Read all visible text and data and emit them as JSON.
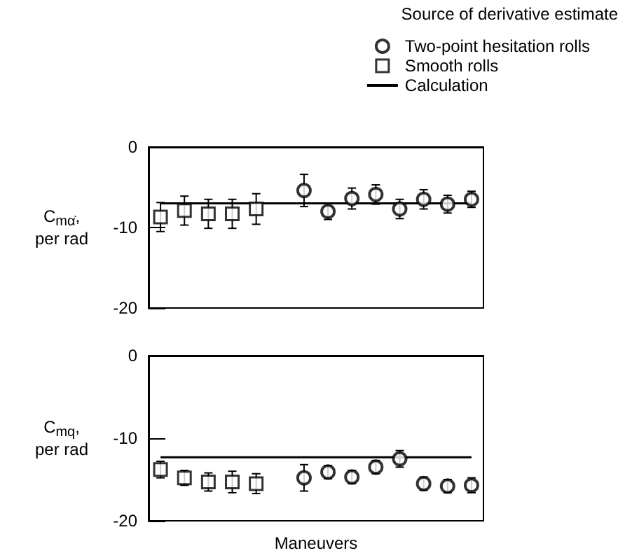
{
  "chart_data": [
    {
      "type": "scatter",
      "ylabel": "C$_{mα̇}$,\nper rad",
      "legend_title": "Source of derivative estimate",
      "legend": "top right",
      "tick_labels": "y",
      "grid": false,
      "categories": [
        null,
        null,
        null,
        null,
        null,
        null,
        null,
        null,
        null,
        null,
        null,
        null,
        null,
        null
      ],
      "ylim": [
        -20,
        0
      ],
      "yticks": [
        -20,
        -10,
        0
      ],
      "series": [
        {
          "name": "Two-point hesitation rolls",
          "color": "#000000",
          "marker": "circle",
          "values": [
            null,
            null,
            null,
            null,
            null,
            null,
            -5.4,
            -8.0,
            -6.4,
            -5.9,
            -7.7,
            -6.5,
            -7.1,
            -6.5
          ],
          "errors": [
            null,
            null,
            null,
            null,
            null,
            null,
            2,
            1,
            1.3,
            1.2,
            1.2,
            1.2,
            1.1,
            1
          ]
        },
        {
          "name": "Smooth rolls",
          "color": "#000000",
          "marker": "square",
          "values": [
            -8.7,
            -7.9,
            -8.3,
            -8.3,
            -7.7,
            null,
            null,
            null,
            null,
            null,
            null,
            null,
            null,
            null
          ],
          "errors": [
            1.8,
            1.8,
            1.8,
            1.8,
            1.9,
            null,
            null,
            null,
            null,
            null,
            null,
            null,
            null,
            null
          ]
        },
        {
          "name": "Calculation",
          "type": "line",
          "color": "#000000",
          "line_style": "solid",
          "marker": "none",
          "values": [
            -7,
            -7,
            -7,
            -7,
            -7,
            -7,
            -7,
            -7,
            -7,
            -7,
            -7,
            -7,
            -7,
            -7
          ]
        }
      ]
    },
    {
      "type": "scatter",
      "ylabel": "C$_{mq}$,\nper rad",
      "xlabel": "Maneuvers",
      "legend": false,
      "tick_labels": "y",
      "grid": false,
      "categories": [
        null,
        null,
        null,
        null,
        null,
        null,
        null,
        null,
        null,
        null,
        null,
        null,
        null,
        null
      ],
      "ylim": [
        -20,
        0
      ],
      "yticks": [
        -20,
        -10,
        0
      ],
      "series": [
        {
          "color": "#000000",
          "marker": "circle",
          "values": [
            null,
            null,
            null,
            null,
            null,
            null,
            -14.8,
            -14.1,
            -14.7,
            -13.5,
            -12.5,
            -15.5,
            -15.8,
            -15.7
          ],
          "errors": [
            null,
            null,
            null,
            null,
            null,
            null,
            1.6,
            0.8,
            0.8,
            0.8,
            1,
            0.8,
            0.8,
            0.9
          ]
        },
        {
          "color": "#000000",
          "marker": "square",
          "values": [
            -13.8,
            -14.8,
            -15.3,
            -15.3,
            -15.5,
            null,
            null,
            null,
            null,
            null,
            null,
            null,
            null,
            null
          ],
          "errors": [
            1,
            0.9,
            1.1,
            1.3,
            1.2,
            null,
            null,
            null,
            null,
            null,
            null,
            null,
            null,
            null
          ]
        },
        {
          "type": "line",
          "color": "#000000",
          "line_style": "solid",
          "marker": "none",
          "values": [
            -12.3,
            -12.3,
            -12.3,
            -12.3,
            -12.3,
            -12.3,
            -12.3,
            -12.3,
            -12.3,
            -12.3,
            -12.3,
            -12.3,
            -12.3,
            -12.3
          ]
        }
      ]
    }
  ]
}
